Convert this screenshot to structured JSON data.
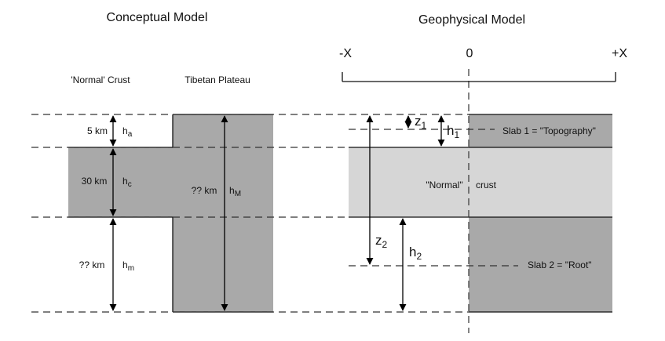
{
  "titles": {
    "conceptual": "Conceptual Model",
    "geophysical": "Geophysical Model"
  },
  "axis": {
    "minus_x": "-X",
    "zero": "0",
    "plus_x": "+X"
  },
  "conceptual": {
    "normal_crust": "'Normal' Crust",
    "tibetan_plateau": "Tibetan Plateau",
    "layers": [
      {
        "thickness": "5 km",
        "symbol": "h",
        "sub": "a"
      },
      {
        "thickness": "30 km",
        "symbol": "h",
        "sub": "c"
      },
      {
        "thickness": "?? km",
        "symbol": "h",
        "sub": "m"
      }
    ],
    "plateau": {
      "thickness": "?? km",
      "symbol": "h",
      "sub": "M"
    }
  },
  "geophysical": {
    "z1": {
      "symbol": "z",
      "sub": "1"
    },
    "h1": {
      "symbol": "h",
      "sub": "1"
    },
    "z2": {
      "symbol": "z",
      "sub": "2"
    },
    "h2": {
      "symbol": "h",
      "sub": "2"
    },
    "slab1": "Slab 1 = \"Topography\"",
    "normal_label": "\"Normal\"",
    "crust_label": "crust",
    "slab2": "Slab 2 = \"Root\""
  },
  "colors": {
    "dark_fill": "#a9a9a9",
    "light_fill": "#d6d6d6"
  }
}
